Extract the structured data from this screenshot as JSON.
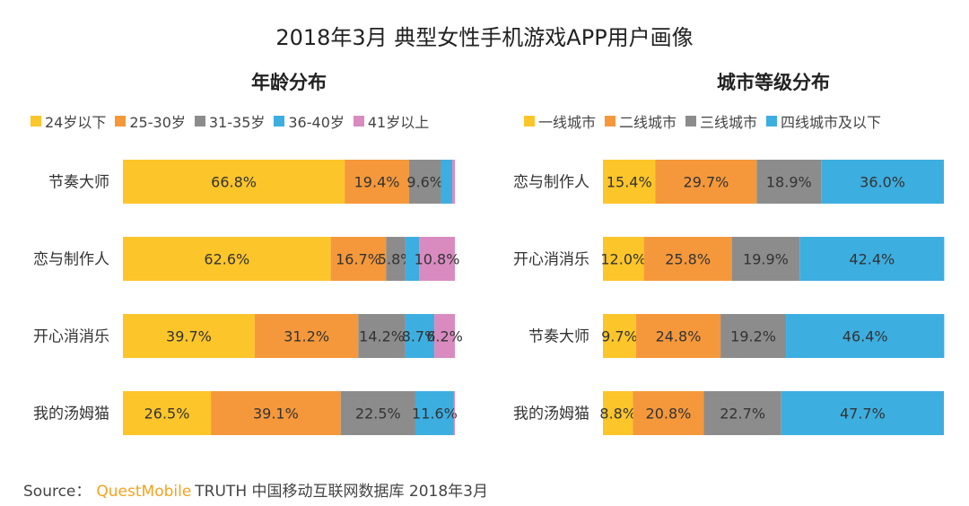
{
  "title": "2018年3月 典型女性手机游戏APP用户画像",
  "source": {
    "prefix": "Source：",
    "brand": "QuestMobile",
    "suffix": "TRUTH 中国移动互联网数据库 2018年3月"
  },
  "chart_data": [
    {
      "type": "bar",
      "orientation": "horizontal",
      "stacked": true,
      "title": "年龄分布",
      "categories": [
        "节奏大师",
        "恋与制作人",
        "开心消消乐",
        "我的汤姆猫"
      ],
      "series": [
        {
          "name": "24岁以下",
          "color": "#fcc52a",
          "values": [
            66.8,
            62.6,
            39.7,
            26.5
          ],
          "labels": [
            "66.8%",
            "62.6%",
            "39.7%",
            "26.5%"
          ]
        },
        {
          "name": "25-30岁",
          "color": "#f5983b",
          "values": [
            19.4,
            16.7,
            31.2,
            39.1
          ],
          "labels": [
            "19.4%",
            "16.7%",
            "31.2%",
            "39.1%"
          ]
        },
        {
          "name": "31-35岁",
          "color": "#8c8c8c",
          "values": [
            9.6,
            5.8,
            14.2,
            22.5
          ],
          "labels": [
            "9.6%",
            "5.8%",
            "14.2%",
            "22.5%"
          ]
        },
        {
          "name": "36-40岁",
          "color": "#3daee0",
          "values": [
            3.4,
            4.1,
            8.7,
            11.6
          ],
          "labels": [
            "",
            "",
            "8.7%",
            "11.6%"
          ]
        },
        {
          "name": "41岁以上",
          "color": "#d98bc0",
          "values": [
            0.8,
            10.8,
            6.2,
            0.3
          ],
          "labels": [
            "",
            "10.8%",
            "6.2%",
            ""
          ]
        }
      ],
      "xlim": [
        0,
        100
      ],
      "legend": "top"
    },
    {
      "type": "bar",
      "orientation": "horizontal",
      "stacked": true,
      "title": "城市等级分布",
      "categories": [
        "恋与制作人",
        "开心消消乐",
        "节奏大师",
        "我的汤姆猫"
      ],
      "series": [
        {
          "name": "一线城市",
          "color": "#fcc52a",
          "values": [
            15.4,
            12.0,
            9.7,
            8.8
          ],
          "labels": [
            "15.4%",
            "12.0%",
            "9.7%",
            "8.8%"
          ]
        },
        {
          "name": "二线城市",
          "color": "#f5983b",
          "values": [
            29.7,
            25.8,
            24.8,
            20.8
          ],
          "labels": [
            "29.7%",
            "25.8%",
            "24.8%",
            "20.8%"
          ]
        },
        {
          "name": "三线城市",
          "color": "#8c8c8c",
          "values": [
            18.9,
            19.9,
            19.2,
            22.7
          ],
          "labels": [
            "18.9%",
            "19.9%",
            "19.2%",
            "22.7%"
          ]
        },
        {
          "name": "四线城市及以下",
          "color": "#3daee0",
          "values": [
            36.0,
            42.4,
            46.4,
            47.7
          ],
          "labels": [
            "36.0%",
            "42.4%",
            "46.4%",
            "47.7%"
          ]
        }
      ],
      "xlim": [
        0,
        100
      ],
      "legend": "top"
    }
  ]
}
